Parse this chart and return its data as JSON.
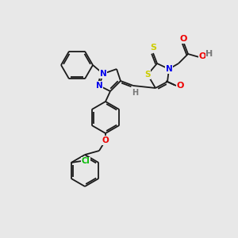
{
  "background_color": "#e8e8e8",
  "bond_color": "#1a1a1a",
  "atom_colors": {
    "N": "#0000ee",
    "O": "#ee0000",
    "S": "#cccc00",
    "Cl": "#00bb00",
    "H": "#777777",
    "C": "#1a1a1a"
  },
  "figsize": [
    3.0,
    3.0
  ],
  "dpi": 100,
  "lw": 1.3
}
